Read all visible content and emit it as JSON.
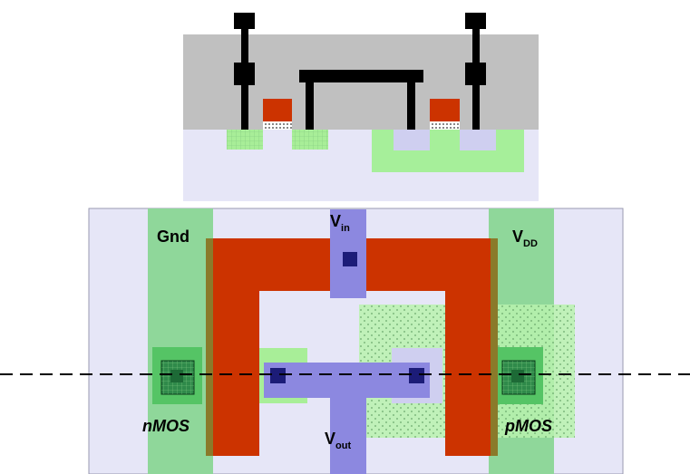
{
  "labels": {
    "gnd": "Gnd",
    "vdd_main": "V",
    "vdd_sub": "DD",
    "vin_main": "V",
    "vin_sub": "in",
    "vout_main": "V",
    "vout_sub": "out",
    "nmos": "nMOS",
    "pmos": "pMOS"
  },
  "colors": {
    "oxide": "#c0c0c0",
    "substrate": "#e6e6f7",
    "ndiff": "#a8ee98",
    "pdiff": "#cfcff0",
    "nwell": "#a6ef9a",
    "poly": "#cc3300",
    "metal_contact": "#000000",
    "metal_strip": "#8fd79a",
    "metal_via": "#8c88e0",
    "contact": "#1c1c78"
  }
}
